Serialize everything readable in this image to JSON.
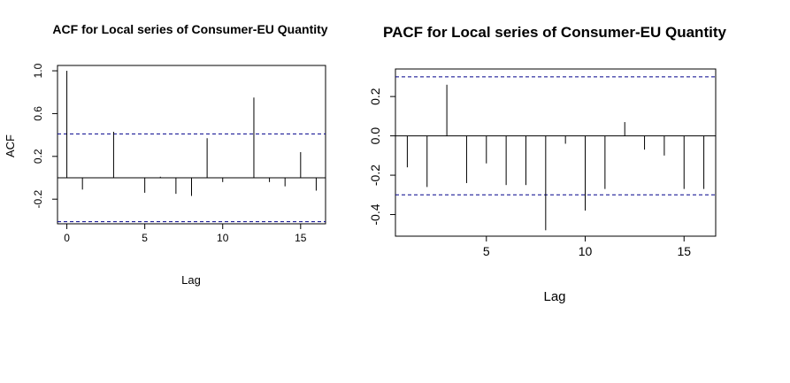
{
  "chart_data": [
    {
      "type": "bar",
      "title": "ACF for Local series of Consumer-EU Quantity",
      "xlabel": "Lag",
      "ylabel": "ACF",
      "x_ticks": [
        0,
        5,
        10,
        15
      ],
      "y_ticks": [
        -0.2,
        0.2,
        0.6,
        1.0
      ],
      "y_tick_labels": [
        "-0.2",
        "0.2",
        "0.6",
        "1.0"
      ],
      "xlim": [
        -0.6,
        16.6
      ],
      "ylim": [
        -0.43,
        1.05
      ],
      "confidence_bound": 0.41,
      "confidence_color": "#00008B",
      "lags": [
        0,
        1,
        2,
        3,
        4,
        5,
        6,
        7,
        8,
        9,
        10,
        11,
        12,
        13,
        14,
        15,
        16
      ],
      "values": [
        1.0,
        -0.11,
        0.0,
        0.43,
        0.0,
        -0.14,
        0.01,
        -0.15,
        -0.17,
        0.37,
        -0.04,
        0.0,
        0.75,
        -0.04,
        -0.08,
        0.24,
        -0.12
      ],
      "grid": false
    },
    {
      "type": "bar",
      "title": "PACF for Local series of Consumer-EU Quantity",
      "xlabel": "Lag",
      "ylabel": "",
      "x_ticks": [
        5,
        10,
        15
      ],
      "y_ticks": [
        -0.4,
        -0.2,
        0.0,
        0.2
      ],
      "y_tick_labels": [
        "-0.4",
        "-0.2",
        "0.0",
        "0.2"
      ],
      "xlim": [
        0.4,
        16.6
      ],
      "ylim": [
        -0.51,
        0.34
      ],
      "confidence_bound": 0.3,
      "confidence_color": "#00008B",
      "lags": [
        1,
        2,
        3,
        4,
        5,
        6,
        7,
        8,
        9,
        10,
        11,
        12,
        13,
        14,
        15,
        16
      ],
      "values": [
        -0.16,
        -0.26,
        0.26,
        -0.24,
        -0.14,
        -0.25,
        -0.25,
        -0.48,
        -0.04,
        -0.38,
        -0.27,
        0.07,
        -0.07,
        -0.1,
        -0.27,
        -0.27
      ],
      "grid": false
    }
  ]
}
